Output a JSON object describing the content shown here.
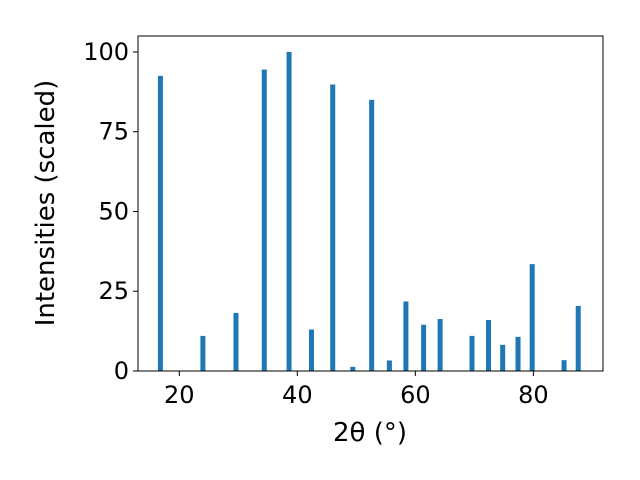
{
  "chart_data": {
    "type": "bar",
    "xlabel": "2θ (°)",
    "ylabel": "Intensities (scaled)",
    "xlim": [
      13.0,
      91.8
    ],
    "ylim": [
      0,
      105
    ],
    "xticks": [
      20,
      40,
      60,
      80
    ],
    "yticks": [
      0,
      25,
      50,
      75,
      100
    ],
    "grid": false,
    "bar_color": "#1f77b4",
    "x": [
      16.8,
      24.0,
      29.6,
      34.4,
      38.6,
      42.4,
      46.0,
      49.4,
      52.6,
      55.6,
      58.4,
      61.4,
      64.2,
      69.6,
      72.4,
      74.8,
      77.4,
      79.8,
      85.2,
      87.6
    ],
    "values": [
      92.5,
      11.0,
      18.2,
      94.5,
      100.0,
      13.0,
      89.8,
      1.3,
      85.0,
      3.3,
      21.8,
      14.5,
      16.3,
      11.0,
      16.0,
      8.2,
      10.7,
      33.5,
      3.4,
      20.4
    ]
  }
}
